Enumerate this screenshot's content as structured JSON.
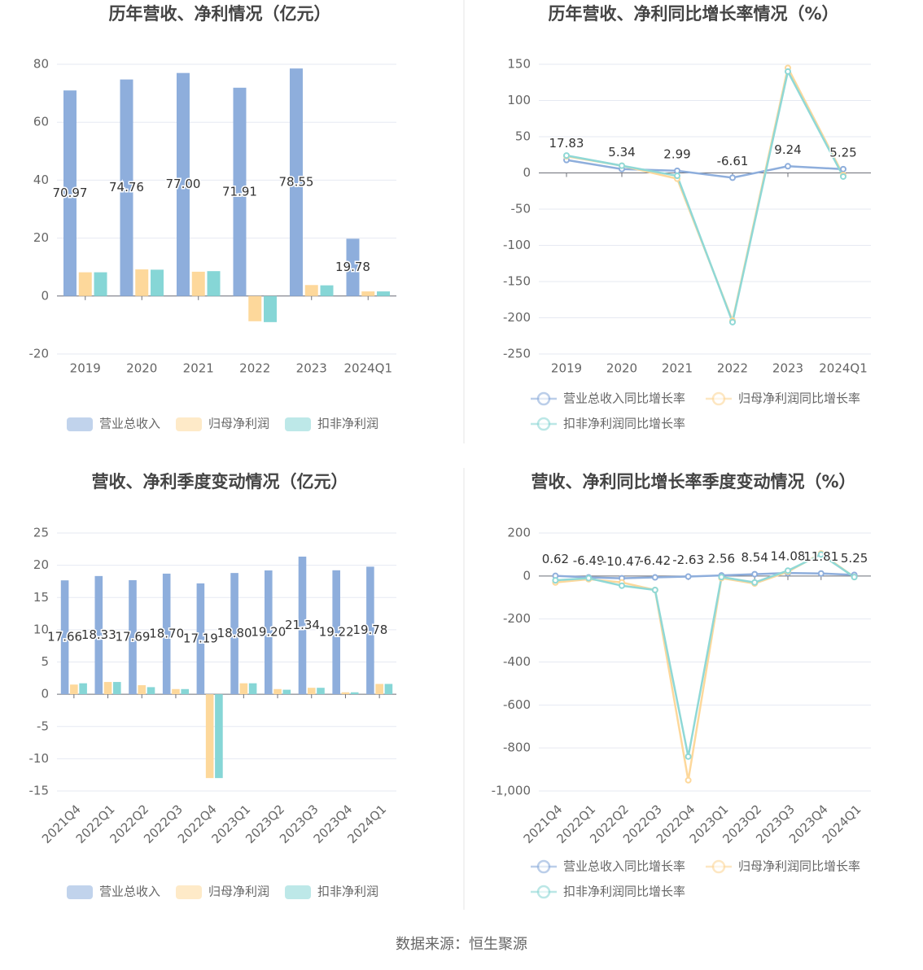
{
  "chart_data": [
    {
      "type": "bar",
      "title": "历年营收、净利情况（亿元）",
      "categories": [
        "2019",
        "2020",
        "2021",
        "2022",
        "2023",
        "2024Q1"
      ],
      "series": [
        {
          "name": "营业总收入",
          "color": "#8eaedc",
          "values": [
            70.97,
            74.76,
            77.0,
            71.91,
            78.55,
            19.78
          ],
          "value_labels": [
            "70.97",
            "74.76",
            "77.00",
            "71.91",
            "78.55",
            "19.78"
          ]
        },
        {
          "name": "归母净利润",
          "color": "#fdd89b",
          "values": [
            8.2,
            9.2,
            8.4,
            -8.7,
            3.8,
            1.6
          ]
        },
        {
          "name": "扣非净利润",
          "color": "#86d6d6",
          "values": [
            8.2,
            9.1,
            8.6,
            -9.0,
            3.7,
            1.6
          ]
        }
      ],
      "ylim": [
        -20,
        80
      ],
      "yticks": [
        -20,
        0,
        20,
        40,
        60,
        80
      ],
      "grid": true,
      "legend": "bottom"
    },
    {
      "type": "line",
      "title": "历年营收、净利同比增长率情况（%）",
      "categories": [
        "2019",
        "2020",
        "2021",
        "2022",
        "2023",
        "2024Q1"
      ],
      "series": [
        {
          "name": "营业总收入同比增长率",
          "color": "#8eaedc",
          "values": [
            17.83,
            5.34,
            2.99,
            -6.61,
            9.24,
            5.25
          ],
          "value_labels": [
            "17.83",
            "5.34",
            "2.99",
            "-6.61",
            "9.24",
            "5.25"
          ]
        },
        {
          "name": "归母净利润同比增长率",
          "color": "#fdd89b",
          "values": [
            23,
            10,
            -8,
            -204,
            145,
            -3
          ]
        },
        {
          "name": "扣非净利润同比增长率",
          "color": "#8fd8d6",
          "values": [
            24,
            10,
            -4,
            -206,
            140,
            -5
          ]
        }
      ],
      "ylim": [
        -250,
        150
      ],
      "yticks": [
        -250,
        -200,
        -150,
        -100,
        -50,
        0,
        50,
        100,
        150
      ],
      "grid": true,
      "legend": "bottom"
    },
    {
      "type": "bar",
      "title": "营收、净利季度变动情况（亿元）",
      "categories": [
        "2021Q4",
        "2022Q1",
        "2022Q2",
        "2022Q3",
        "2022Q4",
        "2023Q1",
        "2023Q2",
        "2023Q3",
        "2023Q4",
        "2024Q1"
      ],
      "series": [
        {
          "name": "营业总收入",
          "color": "#8eaedc",
          "values": [
            17.66,
            18.33,
            17.69,
            18.7,
            17.19,
            18.8,
            19.2,
            21.34,
            19.22,
            19.78
          ],
          "value_labels": [
            "17.66",
            "18.33",
            "17.69",
            "18.70",
            "17.19",
            "18.80",
            "19.20",
            "21.34",
            "19.22",
            "19.78"
          ]
        },
        {
          "name": "归母净利润",
          "color": "#fdd89b",
          "values": [
            1.5,
            1.9,
            1.4,
            0.8,
            -13,
            1.7,
            0.8,
            1.0,
            0.3,
            1.6
          ]
        },
        {
          "name": "扣非净利润",
          "color": "#86d6d6",
          "values": [
            1.7,
            1.9,
            1.1,
            0.8,
            -13,
            1.7,
            0.7,
            1.0,
            0.3,
            1.6
          ]
        }
      ],
      "ylim": [
        -15,
        25
      ],
      "yticks": [
        -15,
        -10,
        -5,
        0,
        5,
        10,
        15,
        20,
        25
      ],
      "grid": true,
      "legend": "bottom"
    },
    {
      "type": "line",
      "title": "营收、净利同比增长率季度变动情况（%）",
      "categories": [
        "2021Q4",
        "2022Q1",
        "2022Q2",
        "2022Q3",
        "2022Q4",
        "2023Q1",
        "2023Q2",
        "2023Q3",
        "2023Q4",
        "2024Q1"
      ],
      "series": [
        {
          "name": "营业总收入同比增长率",
          "color": "#8eaedc",
          "values": [
            0.62,
            -6.49,
            -10.47,
            -6.42,
            -2.63,
            2.56,
            8.54,
            14.08,
            11.81,
            5.25
          ],
          "value_labels": [
            "0.62",
            "-6.49",
            "-10.47",
            "-6.42",
            "-2.63",
            "2.56",
            "8.54",
            "14.08",
            "11.81",
            "5.25"
          ]
        },
        {
          "name": "归母净利润同比增长率",
          "color": "#fdd89b",
          "values": [
            -30,
            -15,
            -30,
            -65,
            -950,
            -10,
            -35,
            20,
            105,
            -5
          ]
        },
        {
          "name": "扣非净利润同比增长率",
          "color": "#8fd8d6",
          "values": [
            -20,
            -10,
            -45,
            -65,
            -840,
            -5,
            -30,
            25,
            100,
            -5
          ]
        }
      ],
      "ylim": [
        -1000,
        200
      ],
      "yticks": [
        {
          "value": -1000,
          "label": "-1,000"
        },
        -800,
        -600,
        -400,
        -200,
        0,
        200
      ],
      "grid": true,
      "legend": "bottom"
    }
  ],
  "source": "数据来源：恒生聚源"
}
